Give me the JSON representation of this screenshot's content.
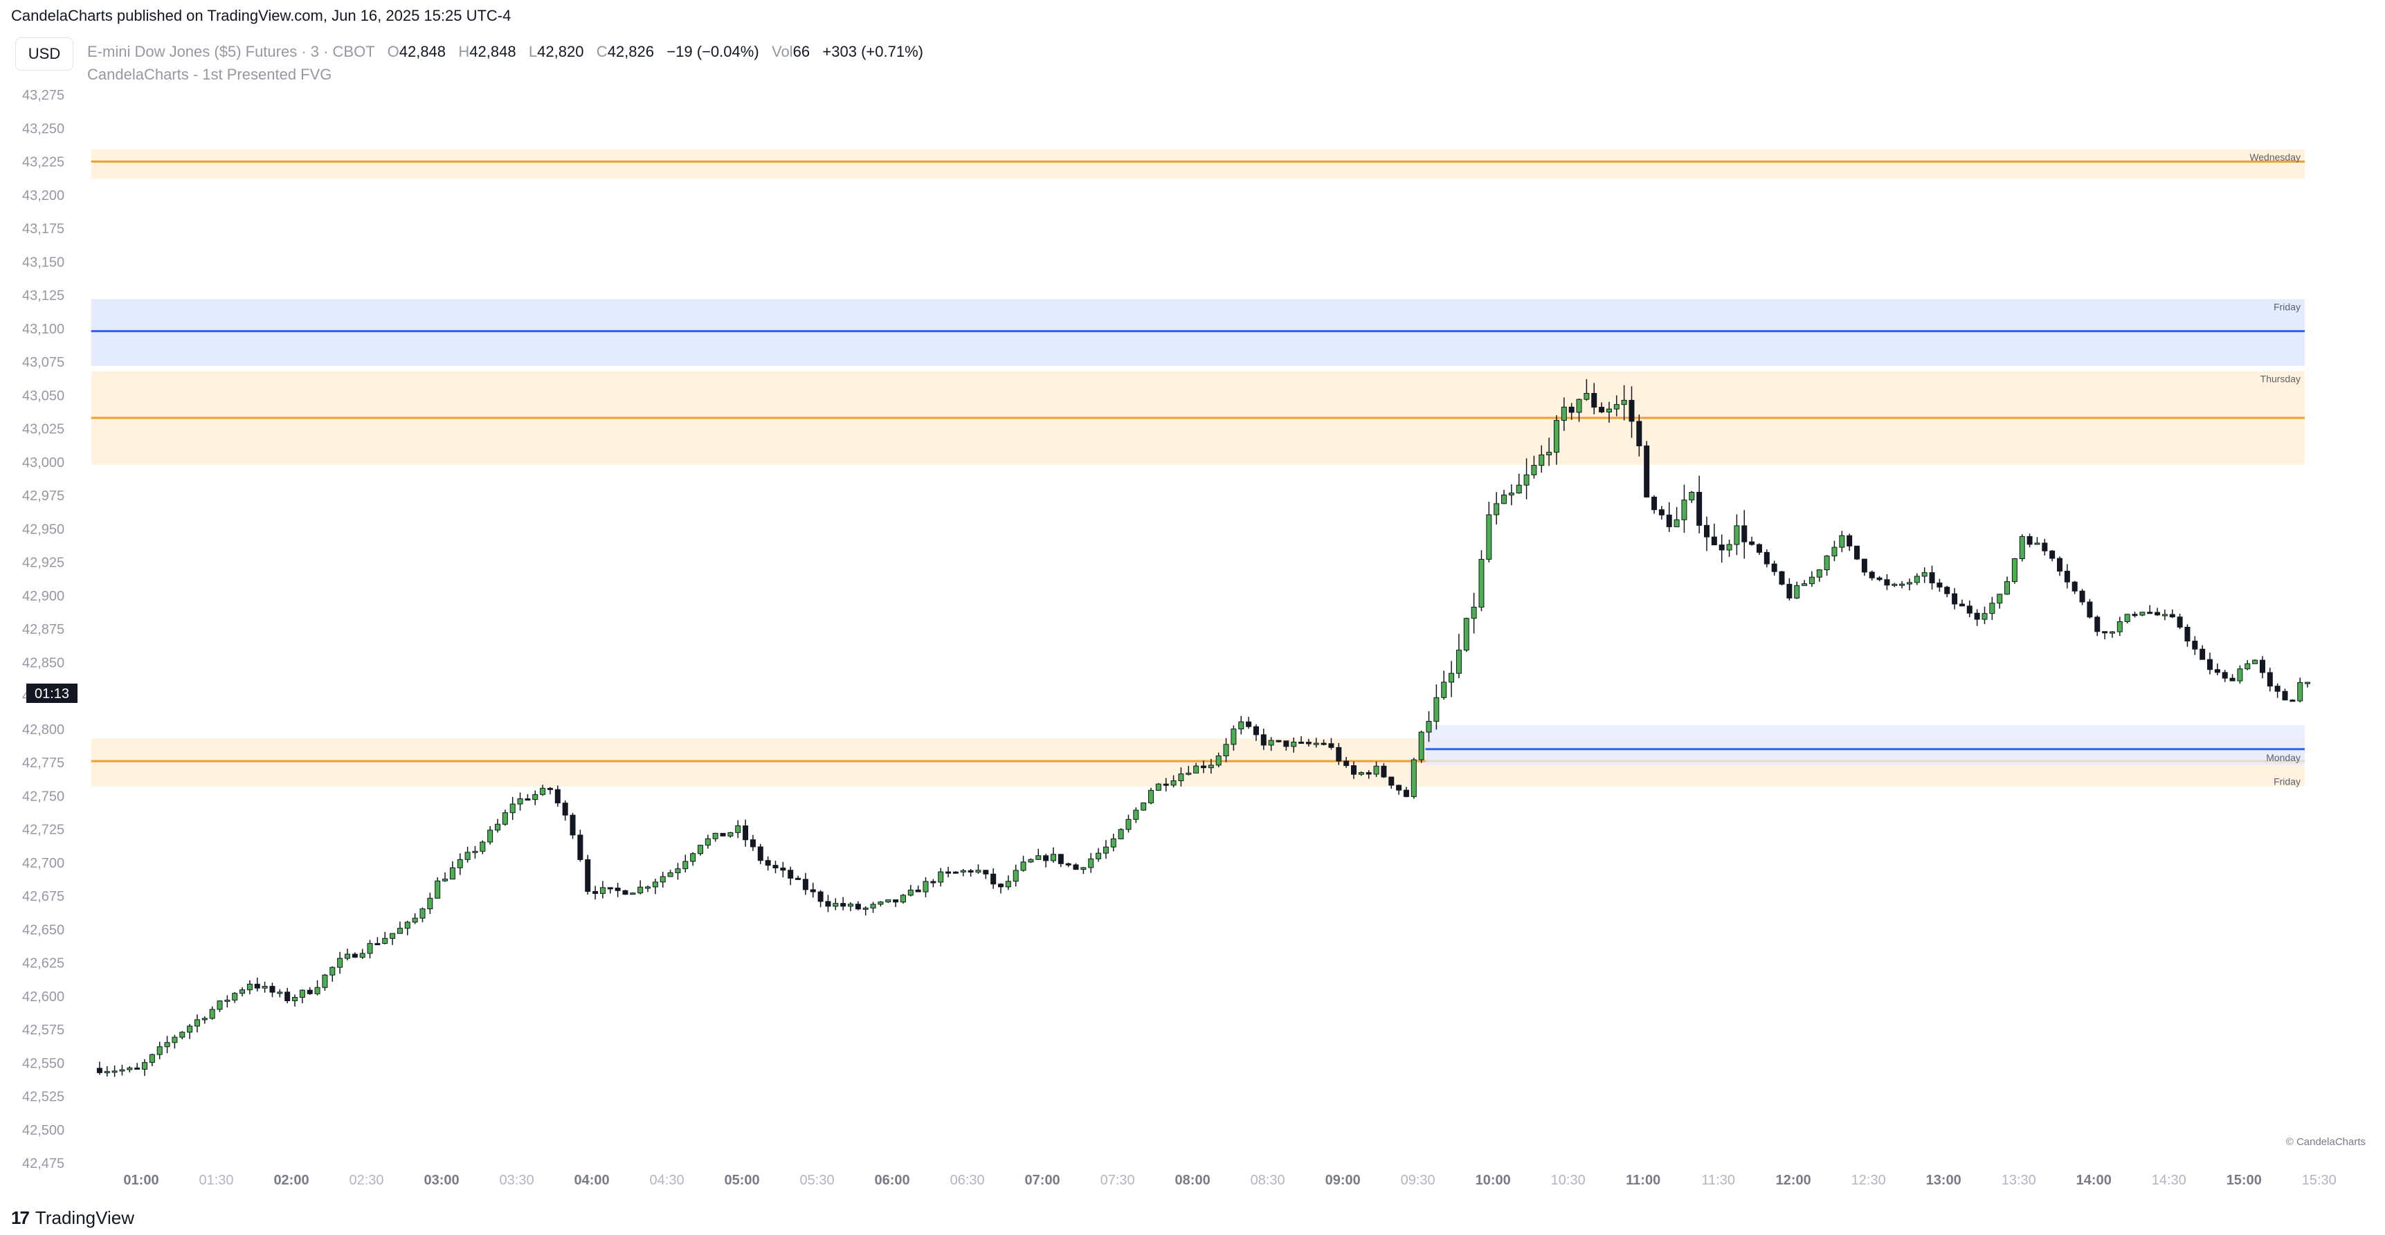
{
  "header": {
    "published": "CandelaCharts published on TradingView.com, Jun 16, 2025 15:25 UTC-4",
    "currency_button": "USD",
    "symbol": "E-mini Dow Jones ($5) Futures · 3 · CBOT",
    "o_label": "O",
    "o_value": "42,848",
    "h_label": "H",
    "h_value": "42,848",
    "l_label": "L",
    "l_value": "42,820",
    "c_label": "C",
    "c_value": "42,826",
    "change": "−19 (−0.04%)",
    "vol_label": "Vol",
    "vol_value": "66",
    "day_change": "+303 (+0.71%)",
    "indicator": "CandelaCharts - 1st Presented FVG"
  },
  "footer": {
    "logo_mark": "17",
    "logo_text": "TradingView",
    "copyright": "© CandelaCharts"
  },
  "countdown": "01:13",
  "colors": {
    "up": "#4caf50",
    "down": "#131722",
    "orange_line": "#f0a030",
    "orange_zone": "#fff3e0",
    "blue_line": "#2962ff",
    "blue_zone": "#e3ebff",
    "axis_text": "#9598a1"
  },
  "chart_data": {
    "type": "candlestick",
    "title": "",
    "y_ticks": [
      "43,275",
      "43,250",
      "43,225",
      "43,200",
      "43,175",
      "43,150",
      "43,125",
      "43,100",
      "43,075",
      "43,050",
      "43,025",
      "43,000",
      "42,975",
      "42,950",
      "42,925",
      "42,900",
      "42,875",
      "42,850",
      "42,825",
      "42,800",
      "42,775",
      "42,750",
      "42,725",
      "42,700",
      "42,675",
      "42,650",
      "42,625",
      "42,600",
      "42,575",
      "42,550",
      "42,525",
      "42,500",
      "42,475"
    ],
    "x_ticks": [
      {
        "label": "01:00",
        "bold": true
      },
      {
        "label": "01:30",
        "bold": false
      },
      {
        "label": "02:00",
        "bold": true
      },
      {
        "label": "02:30",
        "bold": false
      },
      {
        "label": "03:00",
        "bold": true
      },
      {
        "label": "03:30",
        "bold": false
      },
      {
        "label": "04:00",
        "bold": true
      },
      {
        "label": "04:30",
        "bold": false
      },
      {
        "label": "05:00",
        "bold": true
      },
      {
        "label": "05:30",
        "bold": false
      },
      {
        "label": "06:00",
        "bold": true
      },
      {
        "label": "06:30",
        "bold": false
      },
      {
        "label": "07:00",
        "bold": true
      },
      {
        "label": "07:30",
        "bold": false
      },
      {
        "label": "08:00",
        "bold": true
      },
      {
        "label": "08:30",
        "bold": false
      },
      {
        "label": "09:00",
        "bold": true
      },
      {
        "label": "09:30",
        "bold": false
      },
      {
        "label": "10:00",
        "bold": true
      },
      {
        "label": "10:30",
        "bold": false
      },
      {
        "label": "11:00",
        "bold": true
      },
      {
        "label": "11:30",
        "bold": false
      },
      {
        "label": "12:00",
        "bold": true
      },
      {
        "label": "12:30",
        "bold": false
      },
      {
        "label": "13:00",
        "bold": true
      },
      {
        "label": "13:30",
        "bold": false
      },
      {
        "label": "14:00",
        "bold": true
      },
      {
        "label": "14:30",
        "bold": false
      },
      {
        "label": "15:00",
        "bold": true
      },
      {
        "label": "15:30",
        "bold": false
      }
    ],
    "zones": [
      {
        "label": "Wednesday",
        "top": 43234,
        "bottom": 43212,
        "level": 43225,
        "color": "orange",
        "start": "00:40",
        "label_pos": "top"
      },
      {
        "label": "Friday",
        "top": 43122,
        "bottom": 43072,
        "level": 43098,
        "color": "blue",
        "start": "00:40",
        "label_pos": "top"
      },
      {
        "label": "Thursday",
        "top": 43068,
        "bottom": 42998,
        "level": 43033,
        "color": "orange",
        "start": "00:40",
        "label_pos": "top"
      },
      {
        "label": "Friday",
        "top": 42793,
        "bottom": 42757,
        "level": 42776,
        "color": "orange",
        "start": "00:40",
        "label_pos": "bottom"
      },
      {
        "label": "Monday",
        "top": 42803,
        "bottom": 42773,
        "level": 42785,
        "color": "blue",
        "start": "09:33",
        "label_pos": "bottom"
      }
    ],
    "trend": [
      [
        "00:42",
        42546
      ],
      [
        "01:00",
        42544
      ],
      [
        "01:15",
        42570
      ],
      [
        "01:30",
        42590
      ],
      [
        "01:45",
        42610
      ],
      [
        "02:00",
        42598
      ],
      [
        "02:10",
        42605
      ],
      [
        "02:20",
        42625
      ],
      [
        "02:35",
        42640
      ],
      [
        "02:50",
        42655
      ],
      [
        "03:00",
        42685
      ],
      [
        "03:15",
        42710
      ],
      [
        "03:25",
        42730
      ],
      [
        "03:30",
        42745
      ],
      [
        "03:45",
        42755
      ],
      [
        "03:55",
        42720
      ],
      [
        "04:00",
        42680
      ],
      [
        "04:10",
        42678
      ],
      [
        "04:20",
        42680
      ],
      [
        "04:35",
        42695
      ],
      [
        "04:45",
        42715
      ],
      [
        "05:00",
        42725
      ],
      [
        "05:10",
        42700
      ],
      [
        "05:20",
        42690
      ],
      [
        "05:35",
        42670
      ],
      [
        "05:50",
        42665
      ],
      [
        "06:05",
        42672
      ],
      [
        "06:20",
        42690
      ],
      [
        "06:35",
        42695
      ],
      [
        "06:45",
        42680
      ],
      [
        "06:55",
        42700
      ],
      [
        "07:05",
        42705
      ],
      [
        "07:15",
        42695
      ],
      [
        "07:30",
        42715
      ],
      [
        "07:45",
        42755
      ],
      [
        "08:00",
        42770
      ],
      [
        "08:10",
        42775
      ],
      [
        "08:20",
        42805
      ],
      [
        "08:30",
        42790
      ],
      [
        "08:45",
        42788
      ],
      [
        "08:55",
        42790
      ],
      [
        "09:05",
        42765
      ],
      [
        "09:15",
        42770
      ],
      [
        "09:27",
        42750
      ],
      [
        "09:33",
        42800
      ],
      [
        "09:45",
        42840
      ],
      [
        "09:55",
        42900
      ],
      [
        "10:00",
        42960
      ],
      [
        "10:10",
        42975
      ],
      [
        "10:20",
        43000
      ],
      [
        "10:30",
        43035
      ],
      [
        "10:37",
        43050
      ],
      [
        "10:45",
        43040
      ],
      [
        "10:55",
        43045
      ],
      [
        "11:00",
        43010
      ],
      [
        "11:05",
        42960
      ],
      [
        "11:15",
        42955
      ],
      [
        "11:20",
        42975
      ],
      [
        "11:30",
        42935
      ],
      [
        "11:40",
        42950
      ],
      [
        "11:50",
        42925
      ],
      [
        "12:00",
        42900
      ],
      [
        "12:10",
        42915
      ],
      [
        "12:20",
        42945
      ],
      [
        "12:30",
        42920
      ],
      [
        "12:40",
        42905
      ],
      [
        "12:55",
        42915
      ],
      [
        "13:05",
        42895
      ],
      [
        "13:15",
        42885
      ],
      [
        "13:25",
        42900
      ],
      [
        "13:33",
        42945
      ],
      [
        "13:45",
        42930
      ],
      [
        "13:55",
        42900
      ],
      [
        "14:05",
        42870
      ],
      [
        "14:20",
        42890
      ],
      [
        "14:35",
        42880
      ],
      [
        "14:45",
        42850
      ],
      [
        "14:55",
        42835
      ],
      [
        "15:05",
        42855
      ],
      [
        "15:12",
        42830
      ],
      [
        "15:20",
        42820
      ],
      [
        "15:25",
        42838
      ]
    ]
  }
}
